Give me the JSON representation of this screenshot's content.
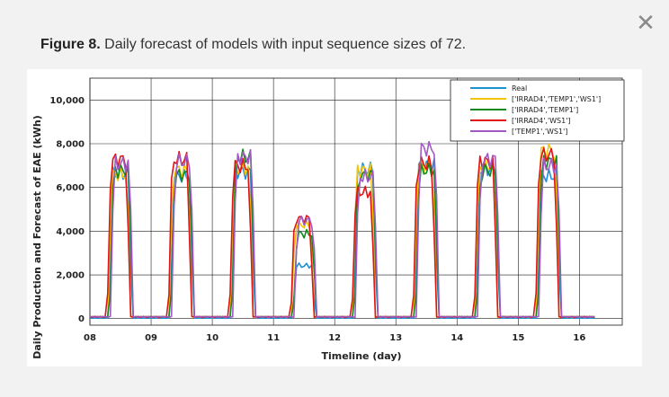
{
  "close_glyph": "✕",
  "caption": {
    "label": "Figure 8.",
    "text": " Daily forecast of models with input sequence sizes of 72."
  },
  "chart_data": {
    "type": "line",
    "xlabel": "Timeline (day)",
    "ylabel": "Daily Production and Forecast of EAE (kWh)",
    "xlim": [
      8,
      16.7
    ],
    "ylim": [
      -300,
      11000
    ],
    "x_ticks": [
      8,
      9,
      10,
      11,
      12,
      13,
      14,
      15,
      16
    ],
    "x_tick_labels": [
      "08",
      "09",
      "10",
      "11",
      "12",
      "13",
      "14",
      "15",
      "16"
    ],
    "y_ticks": [
      0,
      2000,
      4000,
      6000,
      8000,
      10000
    ],
    "y_tick_labels": [
      "0",
      "2,000",
      "4,000",
      "6,000",
      "8,000",
      "10,000"
    ],
    "grid": true,
    "legend_position": "top-right",
    "day_peaks": [
      {
        "day": 8,
        "real": 6600,
        "m1": 6500,
        "m2": 6700,
        "m3": 7200,
        "m4": 7000
      },
      {
        "day": 9,
        "real": 6500,
        "m1": 6700,
        "m2": 6500,
        "m3": 7200,
        "m4": 7100
      },
      {
        "day": 10,
        "real": 6700,
        "m1": 6800,
        "m2": 7300,
        "m3": 6900,
        "m4": 7300
      },
      {
        "day": 11,
        "real": 2400,
        "m1": 4200,
        "m2": 3800,
        "m3": 4500,
        "m4": 4400
      },
      {
        "day": 12,
        "real": 6800,
        "m1": 6700,
        "m2": 6500,
        "m3": 5700,
        "m4": 6400
      },
      {
        "day": 13,
        "real": 7000,
        "m1": 6900,
        "m2": 6700,
        "m3": 7000,
        "m4": 7700
      },
      {
        "day": 14,
        "real": 6800,
        "m1": 6900,
        "m2": 6700,
        "m3": 7100,
        "m4": 7200
      },
      {
        "day": 15,
        "real": 6500,
        "m1": 7600,
        "m2": 7100,
        "m3": 7400,
        "m4": 6900
      }
    ],
    "series": [
      {
        "name": "Real",
        "color": "#1f8fd6"
      },
      {
        "name": "['IRRAD4','TEMP1','WS1']",
        "color": "#f5c400"
      },
      {
        "name": "['IRRAD4','TEMP1']",
        "color": "#12891f"
      },
      {
        "name": "['IRRAD4','WS1']",
        "color": "#e01414"
      },
      {
        "name": "['TEMP1','WS1']",
        "color": "#a259c4"
      }
    ]
  }
}
